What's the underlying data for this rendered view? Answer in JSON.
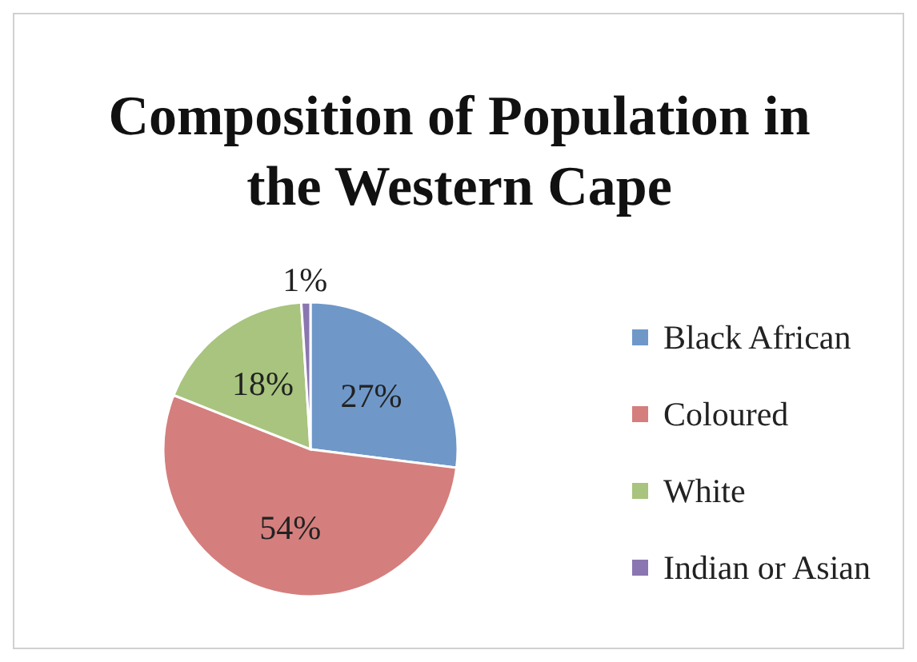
{
  "chart_data": {
    "type": "pie",
    "title": "Composition of Population in the Western Cape",
    "categories": [
      "Black African",
      "Coloured",
      "White",
      "Indian or Asian"
    ],
    "values": [
      27,
      54,
      18,
      1
    ],
    "colors": [
      "#6f98c9",
      "#d47f7d",
      "#a8c47e",
      "#8a76b0"
    ],
    "value_labels": [
      "27%",
      "54%",
      "18%",
      "1%"
    ],
    "legend": "right"
  }
}
